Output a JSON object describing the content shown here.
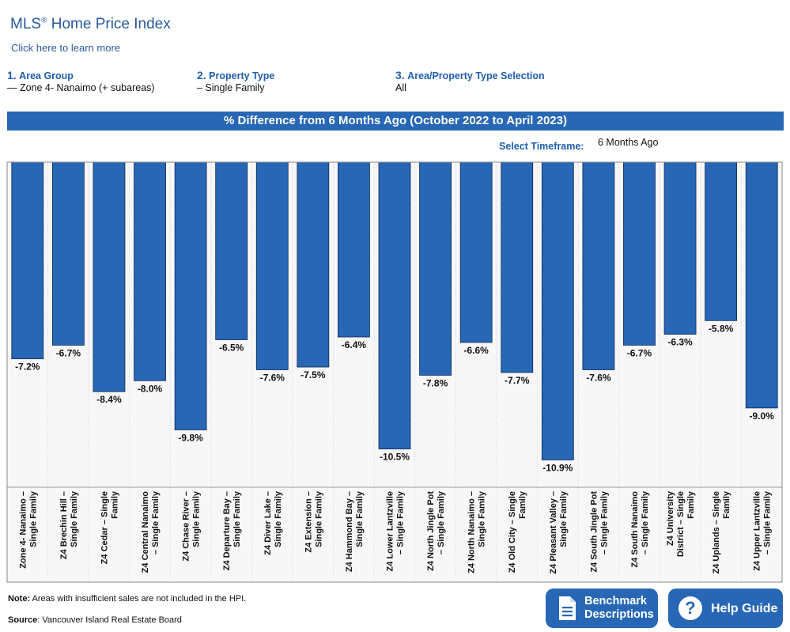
{
  "header": {
    "title_main": "MLS",
    "title_reg": "®",
    "title_rest": " Home Price Index",
    "learn_more": "Click here to learn more"
  },
  "selectors": [
    {
      "num": "1.",
      "label": "Area Group",
      "value": "— Zone 4- Nanaimo (+ subareas)"
    },
    {
      "num": "2.",
      "label": "Property Type",
      "value": "– Single Family"
    },
    {
      "num": "3.",
      "label": "Area/Property Type Selection",
      "value": "All"
    }
  ],
  "timeframe": {
    "label": "Select Timeframe:",
    "value": "6 Months Ago"
  },
  "footer": {
    "note_label": "Note:",
    "note_text": " Areas with insufficient sales are not included in the HPI.",
    "source_label": "Source",
    "source_text": ": Vancouver Island Real Estate Board"
  },
  "buttons": {
    "benchmark_line1": "Benchmark",
    "benchmark_line2": "Descriptions",
    "help": "Help Guide"
  },
  "colors": {
    "bar": "#2767b5",
    "banner": "#2767b5",
    "link": "#2a5aa0"
  },
  "chart_data": {
    "type": "bar",
    "title": "% Difference from 6 Months Ago (October 2022 to April 2023)",
    "categories": [
      [
        "Zone 4- Nanaimo –",
        "Single Family"
      ],
      [
        "Z4 Brechin Hill –",
        "Single Family"
      ],
      [
        "Z4 Cedar – Single",
        "Family"
      ],
      [
        "Z4 Central Nanaimo",
        "– Single Family"
      ],
      [
        "Z4 Chase River –",
        "Single Family"
      ],
      [
        "Z4 Departure Bay –",
        "Single Family"
      ],
      [
        "Z4 Diver Lake –",
        "Single Family"
      ],
      [
        "Z4 Extension –",
        "Single Family"
      ],
      [
        "Z4 Hammond Bay –",
        "Single Family"
      ],
      [
        "Z4 Lower Lantzville",
        "– Single Family"
      ],
      [
        "Z4 North Jingle Pot",
        "– Single Family"
      ],
      [
        "Z4 North Nanaimo –",
        "Single Family"
      ],
      [
        "Z4 Old City – Single",
        "Family"
      ],
      [
        "Z4 Pleasant Valley –",
        "Single Family"
      ],
      [
        "Z4 South Jingle Pot",
        "– Single Family"
      ],
      [
        "Z4 South Nanaimo",
        "– Single Family"
      ],
      [
        "Z4 University",
        "District – Single",
        "Family"
      ],
      [
        "Z4 Uplands – Single",
        "Family"
      ],
      [
        "Z4 Upper Lantzville",
        "– Single Family"
      ]
    ],
    "values": [
      -7.2,
      -6.7,
      -8.4,
      -8.0,
      -9.8,
      -6.5,
      -7.6,
      -7.5,
      -6.4,
      -10.5,
      -7.8,
      -6.6,
      -7.7,
      -10.9,
      -7.6,
      -6.7,
      -6.3,
      -5.8,
      -9.0
    ],
    "value_labels": [
      "-7.2%",
      "-6.7%",
      "-8.4%",
      "-8.0%",
      "-9.8%",
      "-6.5%",
      "-7.6%",
      "-7.5%",
      "-6.4%",
      "-10.5%",
      "-7.8%",
      "-6.6%",
      "-7.7%",
      "-10.9%",
      "-7.6%",
      "-6.7%",
      "-6.3%",
      "-5.8%",
      "-9.0%"
    ],
    "ylim": [
      -11.9,
      0
    ],
    "grid": false,
    "legend": "none"
  }
}
